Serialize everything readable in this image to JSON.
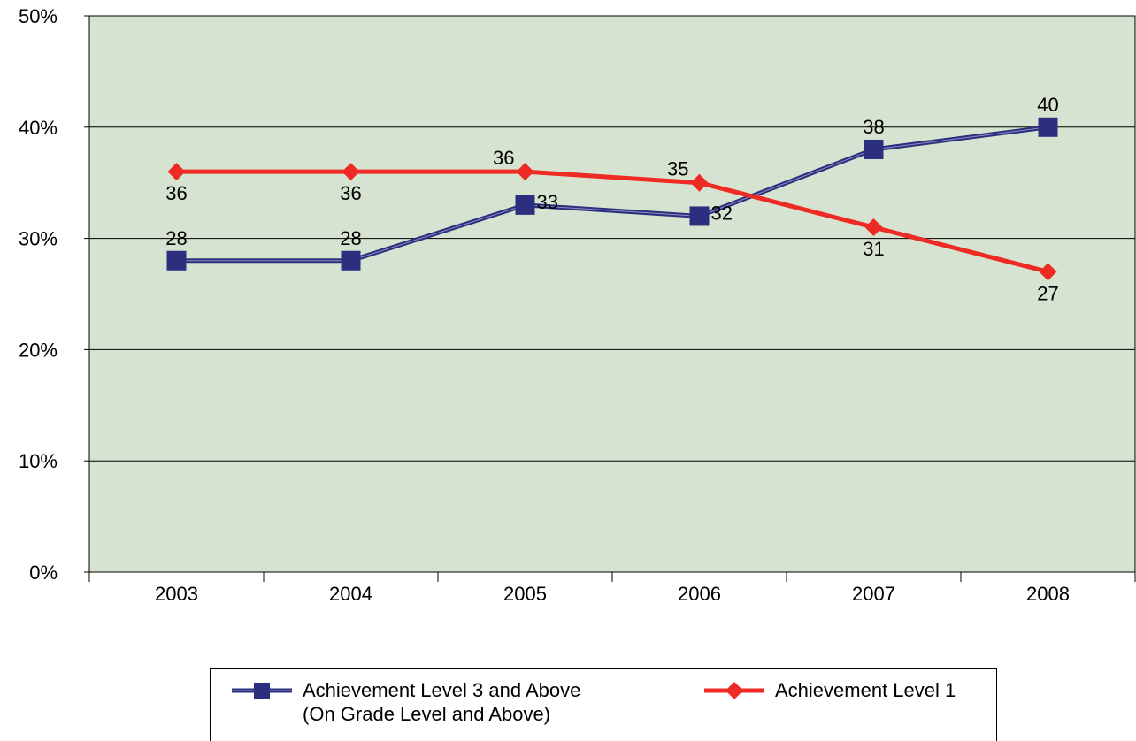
{
  "chart_data": {
    "type": "line",
    "categories": [
      "2003",
      "2004",
      "2005",
      "2006",
      "2007",
      "2008"
    ],
    "ylim": [
      0,
      50
    ],
    "yticks": [
      0,
      10,
      20,
      30,
      40,
      50
    ],
    "ytick_labels": [
      "0%",
      "10%",
      "20%",
      "30%",
      "40%",
      "50%"
    ],
    "grid": true,
    "legend_position": "bottom",
    "plot_background": "#d6e3d0",
    "series": [
      {
        "name": "Achievement Level 3 and Above\n(On Grade Level and Above)",
        "values": [
          28,
          28,
          33,
          32,
          38,
          40
        ],
        "data_labels": [
          "28",
          "28",
          "33",
          "32",
          "38",
          "40"
        ],
        "color": "#2b2f7e",
        "marker": "square"
      },
      {
        "name": "Achievement Level 1",
        "values": [
          36,
          36,
          36,
          35,
          31,
          27
        ],
        "data_labels": [
          "36",
          "36",
          "36",
          "35",
          "31",
          "27"
        ],
        "color": "#ee2a24",
        "marker": "diamond"
      }
    ]
  }
}
